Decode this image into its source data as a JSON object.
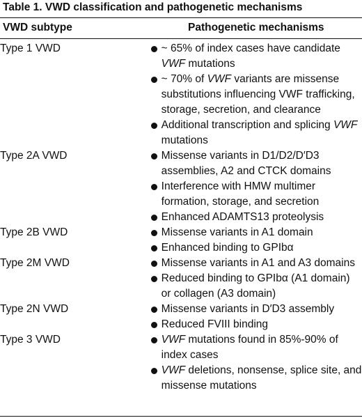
{
  "table": {
    "caption": "Table 1.   VWD classification and pathogenetic mechanisms",
    "headers": [
      "VWD subtype",
      "Pathogenetic mechanisms"
    ],
    "rows": [
      {
        "subtype": "Type 1 VWD",
        "bullets": [
          {
            "segments": [
              {
                "text": "~ 65% of index cases have candidate ",
                "italic": false
              },
              {
                "text": "VWF",
                "italic": true
              },
              {
                "text": " mutations",
                "italic": false
              }
            ]
          },
          {
            "segments": [
              {
                "text": "~ 70% of ",
                "italic": false
              },
              {
                "text": "VWF",
                "italic": true
              },
              {
                "text": " variants are missense substitutions influencing VWF trafficking, storage, secretion, and clearance",
                "italic": false
              }
            ]
          },
          {
            "segments": [
              {
                "text": "Additional transcription and splicing ",
                "italic": false
              },
              {
                "text": "VWF",
                "italic": true
              },
              {
                "text": " mutations",
                "italic": false
              }
            ]
          }
        ]
      },
      {
        "subtype": "Type 2A VWD",
        "bullets": [
          {
            "segments": [
              {
                "text": "Missense variants in D1/D2/D′D3 assemblies, A2 and CTCK domains",
                "italic": false
              }
            ]
          },
          {
            "segments": [
              {
                "text": "Interference with HMW multimer formation, storage, and secretion",
                "italic": false
              }
            ]
          },
          {
            "segments": [
              {
                "text": "Enhanced ADAMTS13 proteolysis",
                "italic": false
              }
            ]
          }
        ]
      },
      {
        "subtype": "Type 2B VWD",
        "bullets": [
          {
            "segments": [
              {
                "text": "Missense variants in A1 domain",
                "italic": false
              }
            ]
          },
          {
            "segments": [
              {
                "text": "Enhanced binding to GPIbα",
                "italic": false
              }
            ]
          }
        ]
      },
      {
        "subtype": "Type 2M VWD",
        "bullets": [
          {
            "segments": [
              {
                "text": "Missense variants in A1 and A3 domains",
                "italic": false
              }
            ]
          },
          {
            "segments": [
              {
                "text": "Reduced binding to GPIbα (A1 domain) or collagen (A3 domain)",
                "italic": false
              }
            ]
          }
        ]
      },
      {
        "subtype": "Type 2N VWD",
        "bullets": [
          {
            "segments": [
              {
                "text": "Missense variants in D′D3 assembly",
                "italic": false
              }
            ]
          },
          {
            "segments": [
              {
                "text": "Reduced FVIII binding",
                "italic": false
              }
            ]
          }
        ]
      },
      {
        "subtype": "Type 3 VWD",
        "bullets": [
          {
            "segments": [
              {
                "text": "VWF",
                "italic": true
              },
              {
                "text": " mutations found in 85%-90% of index cases",
                "italic": false
              }
            ]
          },
          {
            "segments": [
              {
                "text": "VWF",
                "italic": true
              },
              {
                "text": " deletions, nonsense, splice site, and missense mutations",
                "italic": false
              }
            ]
          }
        ]
      }
    ]
  }
}
